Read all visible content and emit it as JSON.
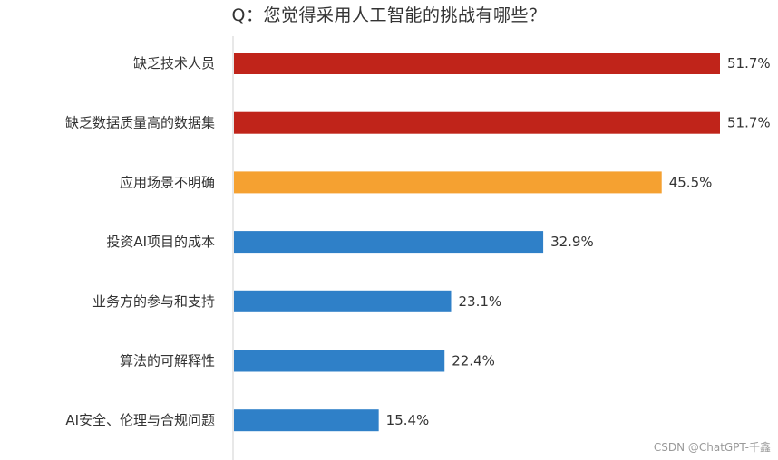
{
  "chart_data": {
    "type": "bar",
    "orientation": "horizontal",
    "title": "Q：您觉得采用人工智能的挑战有哪些？",
    "categories": [
      "缺乏技术人员",
      "缺乏数据质量高的数据集",
      "应用场景不明确",
      "投资AI项目的成本",
      "业务方的参与和支持",
      "算法的可解释性",
      "AI安全、伦理与合规问题"
    ],
    "values": [
      51.7,
      51.7,
      45.5,
      32.9,
      23.1,
      22.4,
      15.4
    ],
    "value_labels": [
      "51.7%",
      "51.7%",
      "45.5%",
      "32.9%",
      "23.1%",
      "22.4%",
      "15.4%"
    ],
    "bar_colors": [
      "#c0241a",
      "#c0241a",
      "#f5a131",
      "#2f80c8",
      "#2f80c8",
      "#2f80c8",
      "#2f80c8"
    ],
    "xlim": [
      0,
      51.7
    ],
    "grid": false,
    "legend": "none"
  },
  "watermark": "CSDN @ChatGPT-千鑫"
}
